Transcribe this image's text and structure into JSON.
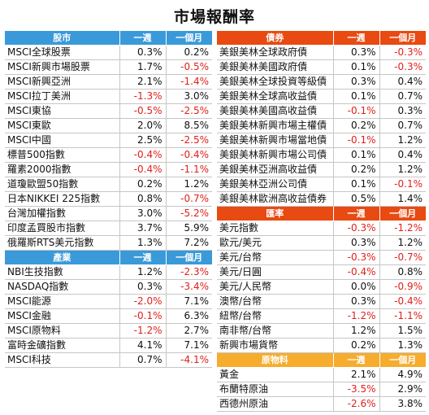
{
  "page": {
    "title": "市場報酬率"
  },
  "headers": {
    "week": "一週",
    "month": "一個月"
  },
  "colors": {
    "stocks": "#3a9ad9",
    "bonds": "#e84a12",
    "fx": "#e84a12",
    "commodity": "#f6ac2d",
    "negative": "#e0201c"
  },
  "sections": {
    "stocks": {
      "label": "股市",
      "rows": [
        {
          "name": "MSCI全球股票",
          "week": "0.3%",
          "month": "0.2%"
        },
        {
          "name": "MSCI新興市場股票",
          "week": "1.7%",
          "month": "-0.5%"
        },
        {
          "name": "MSCI新興亞洲",
          "week": "2.1%",
          "month": "-1.4%"
        },
        {
          "name": "MSCI拉丁美洲",
          "week": "-1.3%",
          "month": "3.0%"
        },
        {
          "name": "MSCI東協",
          "week": "-0.5%",
          "month": "-2.5%"
        },
        {
          "name": "MSCI東歐",
          "week": "2.0%",
          "month": "8.5%"
        },
        {
          "name": "MSCI中國",
          "week": "2.5%",
          "month": "-2.5%"
        },
        {
          "name": "標普500指數",
          "week": "-0.4%",
          "month": "-0.4%"
        },
        {
          "name": "羅素2000指數",
          "week": "-0.4%",
          "month": "-1.1%"
        },
        {
          "name": "道瓊歐盟50指數",
          "week": "0.2%",
          "month": "1.2%"
        },
        {
          "name": "日本NIKKEI 225指數",
          "week": "0.8%",
          "month": "-0.7%"
        },
        {
          "name": "台灣加權指數",
          "week": "3.0%",
          "month": "-5.2%"
        },
        {
          "name": "印度孟買股市指數",
          "week": "3.7%",
          "month": "5.9%"
        },
        {
          "name": "俄羅斯RTS美元指數",
          "week": "1.3%",
          "month": "7.2%"
        }
      ]
    },
    "industry": {
      "label": "產業",
      "rows": [
        {
          "name": "NBI生技指數",
          "week": "1.2%",
          "month": "-2.3%"
        },
        {
          "name": "NASDAQ指數",
          "week": "0.3%",
          "month": "-3.4%"
        },
        {
          "name": "MSCI能源",
          "week": "-2.0%",
          "month": "7.1%"
        },
        {
          "name": "MSCI金融",
          "week": "-0.1%",
          "month": "6.3%"
        },
        {
          "name": "MSCI原物料",
          "week": "-1.2%",
          "month": "2.7%"
        },
        {
          "name": "富時金礦指數",
          "week": "4.1%",
          "month": "7.1%"
        },
        {
          "name": "MSCI科技",
          "week": "0.7%",
          "month": "-4.1%"
        }
      ]
    },
    "bonds": {
      "label": "債券",
      "rows": [
        {
          "name": "美銀美林全球政府債",
          "week": "0.3%",
          "month": "-0.3%"
        },
        {
          "name": "美銀美林美國政府債",
          "week": "0.1%",
          "month": "-0.3%"
        },
        {
          "name": "美銀美林全球投資等級債",
          "week": "0.3%",
          "month": "0.4%"
        },
        {
          "name": "美銀美林全球高收益債",
          "week": "0.1%",
          "month": "0.7%"
        },
        {
          "name": "美銀美林美國高收益債",
          "week": "-0.1%",
          "month": "0.3%"
        },
        {
          "name": "美銀美林新興市場主權債",
          "week": "0.2%",
          "month": "0.7%"
        },
        {
          "name": "美銀美林新興市場當地債",
          "week": "-0.1%",
          "month": "1.2%"
        },
        {
          "name": "美銀美林新興市場公司債",
          "week": "0.1%",
          "month": "0.4%"
        },
        {
          "name": "美銀美林亞洲高收益債",
          "week": "0.2%",
          "month": "1.2%"
        },
        {
          "name": "美銀美林亞洲公司債",
          "week": "0.1%",
          "month": "-0.1%"
        },
        {
          "name": "美銀美林歐洲高收益債券",
          "week": "0.5%",
          "month": "1.4%"
        }
      ]
    },
    "fx": {
      "label": "匯率",
      "rows": [
        {
          "name": "美元指數",
          "week": "-0.3%",
          "month": "-1.2%"
        },
        {
          "name": "歐元/美元",
          "week": "0.3%",
          "month": "1.2%"
        },
        {
          "name": "美元/台幣",
          "week": "-0.3%",
          "month": "-0.7%"
        },
        {
          "name": "美元/日圓",
          "week": "-0.4%",
          "month": "0.8%"
        },
        {
          "name": "美元/人民幣",
          "week": "0.0%",
          "month": "-0.9%"
        },
        {
          "name": "澳幣/台幣",
          "week": "0.3%",
          "month": "-0.4%"
        },
        {
          "name": "紐幣/台幣",
          "week": "-1.2%",
          "month": "-1.1%"
        },
        {
          "name": "南非幣/台幣",
          "week": "1.2%",
          "month": "1.5%"
        },
        {
          "name": "新興市場貨幣",
          "week": "0.2%",
          "month": "1.3%"
        }
      ]
    },
    "commodity": {
      "label": "原物料",
      "rows": [
        {
          "name": "黃金",
          "week": "2.1%",
          "month": "4.9%"
        },
        {
          "name": "布蘭特原油",
          "week": "-3.5%",
          "month": "2.9%"
        },
        {
          "name": "西德州原油",
          "week": "-2.6%",
          "month": "3.8%"
        }
      ]
    }
  }
}
